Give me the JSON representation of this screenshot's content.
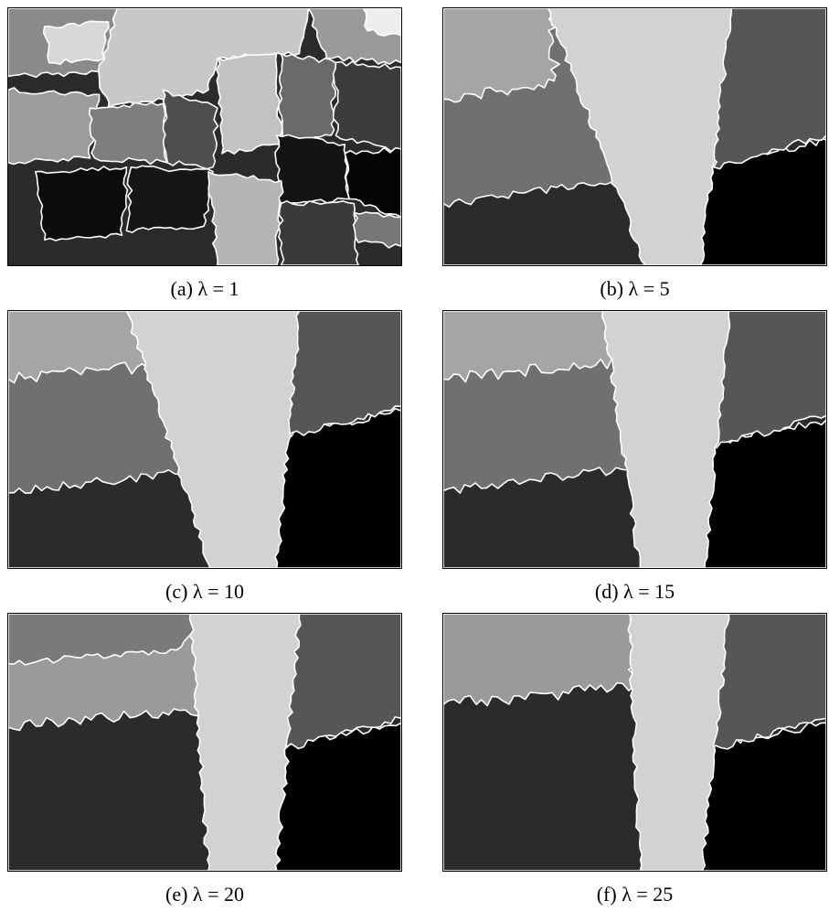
{
  "figure": {
    "panels": [
      {
        "caption": "(a) λ = 1"
      },
      {
        "caption": "(b) λ = 5"
      },
      {
        "caption": "(c) λ = 10"
      },
      {
        "caption": "(d) λ = 15"
      },
      {
        "caption": "(e) λ = 20"
      },
      {
        "caption": "(f) λ = 25"
      }
    ]
  }
}
